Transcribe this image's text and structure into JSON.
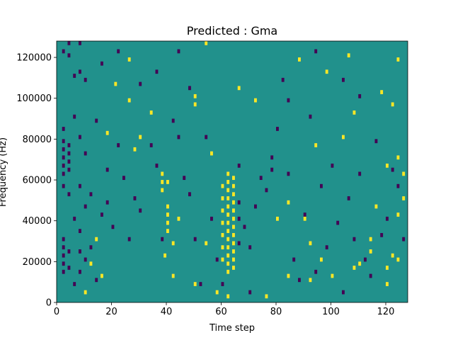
{
  "chart_data": {
    "type": "heatmap",
    "title": "Predicted : Gma",
    "xlabel": "Time step",
    "ylabel": "Frequency (Hz)",
    "xlim": [
      0,
      128
    ],
    "ylim": [
      0,
      128000
    ],
    "x_ticks": [
      0,
      20,
      40,
      60,
      80,
      100,
      120
    ],
    "x_tick_labels": [
      "0",
      "20",
      "40",
      "60",
      "80",
      "100",
      "120"
    ],
    "y_ticks": [
      0,
      20000,
      40000,
      60000,
      80000,
      100000,
      120000
    ],
    "y_tick_labels": [
      "0",
      "20000",
      "40000",
      "60000",
      "80000",
      "100000",
      "120000"
    ],
    "grid": false,
    "legend": "none",
    "colors": {
      "background": "#21918c",
      "low": "#440154",
      "high": "#fde725"
    },
    "value_levels": {
      "background": 0,
      "low": -1,
      "high": 1
    },
    "cell_units": {
      "x": 1,
      "y": 2000
    },
    "high_cells": [
      [
        64,
        60000
      ],
      [
        64,
        56000
      ],
      [
        64,
        52000
      ],
      [
        64,
        48000
      ],
      [
        64,
        44000
      ],
      [
        64,
        40000
      ],
      [
        64,
        36000
      ],
      [
        64,
        32000
      ],
      [
        64,
        28000
      ],
      [
        64,
        24000
      ],
      [
        64,
        20000
      ],
      [
        64,
        16000
      ],
      [
        62,
        62000
      ],
      [
        62,
        58000
      ],
      [
        62,
        54000
      ],
      [
        62,
        50000
      ],
      [
        62,
        46000
      ],
      [
        62,
        42000
      ],
      [
        62,
        38000
      ],
      [
        62,
        34000
      ],
      [
        62,
        30000
      ],
      [
        62,
        26000
      ],
      [
        62,
        22000
      ],
      [
        62,
        18000
      ],
      [
        62,
        14000
      ],
      [
        60,
        56000
      ],
      [
        60,
        50000
      ],
      [
        60,
        44000
      ],
      [
        60,
        38000
      ],
      [
        60,
        32000
      ],
      [
        60,
        26000
      ],
      [
        60,
        20000
      ],
      [
        40,
        46000
      ],
      [
        40,
        42000
      ],
      [
        40,
        38000
      ],
      [
        40,
        34000
      ],
      [
        38,
        62000
      ],
      [
        38,
        58000
      ],
      [
        38,
        54000
      ],
      [
        50,
        100000
      ],
      [
        50,
        96000
      ],
      [
        39,
        22000
      ],
      [
        54,
        126000
      ],
      [
        26,
        118000
      ],
      [
        21,
        106000
      ],
      [
        26,
        98000
      ],
      [
        84,
        48000
      ],
      [
        90,
        40000
      ],
      [
        92,
        28000
      ],
      [
        96,
        20000
      ],
      [
        110,
        18000
      ],
      [
        114,
        30000
      ],
      [
        116,
        46000
      ],
      [
        120,
        66000
      ],
      [
        124,
        70000
      ],
      [
        126,
        62000
      ],
      [
        124,
        42000
      ],
      [
        122,
        22000
      ],
      [
        120,
        16000
      ],
      [
        118,
        102000
      ],
      [
        122,
        96000
      ],
      [
        108,
        92000
      ],
      [
        104,
        80000
      ],
      [
        94,
        76000
      ],
      [
        72,
        98000
      ],
      [
        66,
        104000
      ],
      [
        40,
        58000
      ],
      [
        42,
        28000
      ],
      [
        44,
        40000
      ],
      [
        34,
        92000
      ],
      [
        28,
        74000
      ],
      [
        18,
        82000
      ],
      [
        14,
        30000
      ],
      [
        12,
        18000
      ],
      [
        10,
        4000
      ],
      [
        16,
        12000
      ],
      [
        42,
        12000
      ],
      [
        50,
        8000
      ],
      [
        58,
        4000
      ],
      [
        62,
        2000
      ],
      [
        76,
        2000
      ],
      [
        84,
        12000
      ],
      [
        92,
        10000
      ],
      [
        100,
        12000
      ],
      [
        108,
        16000
      ],
      [
        114,
        24000
      ],
      [
        120,
        8000
      ],
      [
        124,
        20000
      ],
      [
        126,
        50000
      ],
      [
        98,
        112000
      ],
      [
        88,
        118000
      ],
      [
        106,
        120000
      ],
      [
        124,
        118000
      ],
      [
        80,
        40000
      ],
      [
        54,
        28000
      ],
      [
        56,
        72000
      ],
      [
        30,
        80000
      ]
    ],
    "low_cells": [
      [
        2,
        122000
      ],
      [
        2,
        84000
      ],
      [
        2,
        78000
      ],
      [
        2,
        74000
      ],
      [
        2,
        70000
      ],
      [
        2,
        66000
      ],
      [
        2,
        62000
      ],
      [
        2,
        56000
      ],
      [
        2,
        30000
      ],
      [
        2,
        26000
      ],
      [
        2,
        22000
      ],
      [
        2,
        18000
      ],
      [
        2,
        14000
      ],
      [
        4,
        126000
      ],
      [
        4,
        120000
      ],
      [
        4,
        76000
      ],
      [
        4,
        72000
      ],
      [
        4,
        68000
      ],
      [
        4,
        64000
      ],
      [
        4,
        52000
      ],
      [
        4,
        24000
      ],
      [
        4,
        16000
      ],
      [
        6,
        90000
      ],
      [
        6,
        110000
      ],
      [
        6,
        40000
      ],
      [
        6,
        8000
      ],
      [
        8,
        126000
      ],
      [
        8,
        112000
      ],
      [
        8,
        80000
      ],
      [
        8,
        56000
      ],
      [
        8,
        34000
      ],
      [
        8,
        24000
      ],
      [
        8,
        14000
      ],
      [
        10,
        108000
      ],
      [
        10,
        72000
      ],
      [
        10,
        46000
      ],
      [
        10,
        20000
      ],
      [
        12,
        52000
      ],
      [
        12,
        26000
      ],
      [
        14,
        10000
      ],
      [
        16,
        42000
      ],
      [
        18,
        48000
      ],
      [
        22,
        76000
      ],
      [
        24,
        60000
      ],
      [
        26,
        30000
      ],
      [
        28,
        50000
      ],
      [
        30,
        44000
      ],
      [
        34,
        76000
      ],
      [
        36,
        66000
      ],
      [
        38,
        30000
      ],
      [
        42,
        88000
      ],
      [
        44,
        80000
      ],
      [
        46,
        60000
      ],
      [
        48,
        52000
      ],
      [
        48,
        104000
      ],
      [
        50,
        30000
      ],
      [
        52,
        8000
      ],
      [
        54,
        80000
      ],
      [
        56,
        40000
      ],
      [
        58,
        20000
      ],
      [
        60,
        8000
      ],
      [
        66,
        66000
      ],
      [
        66,
        48000
      ],
      [
        66,
        40000
      ],
      [
        68,
        36000
      ],
      [
        70,
        26000
      ],
      [
        72,
        46000
      ],
      [
        74,
        60000
      ],
      [
        76,
        54000
      ],
      [
        78,
        70000
      ],
      [
        80,
        84000
      ],
      [
        82,
        108000
      ],
      [
        84,
        62000
      ],
      [
        86,
        20000
      ],
      [
        88,
        10000
      ],
      [
        90,
        42000
      ],
      [
        92,
        90000
      ],
      [
        94,
        14000
      ],
      [
        96,
        56000
      ],
      [
        98,
        26000
      ],
      [
        100,
        66000
      ],
      [
        102,
        38000
      ],
      [
        104,
        4000
      ],
      [
        106,
        50000
      ],
      [
        108,
        30000
      ],
      [
        110,
        62000
      ],
      [
        112,
        20000
      ],
      [
        114,
        12000
      ],
      [
        116,
        78000
      ],
      [
        118,
        32000
      ],
      [
        120,
        40000
      ],
      [
        122,
        64000
      ],
      [
        124,
        56000
      ],
      [
        126,
        30000
      ],
      [
        110,
        100000
      ],
      [
        104,
        108000
      ],
      [
        94,
        122000
      ],
      [
        84,
        98000
      ],
      [
        78,
        64000
      ],
      [
        70,
        4000
      ],
      [
        66,
        28000
      ],
      [
        44,
        122000
      ],
      [
        36,
        112000
      ],
      [
        30,
        106000
      ],
      [
        22,
        122000
      ],
      [
        16,
        116000
      ],
      [
        14,
        88000
      ],
      [
        18,
        64000
      ],
      [
        20,
        36000
      ]
    ]
  }
}
